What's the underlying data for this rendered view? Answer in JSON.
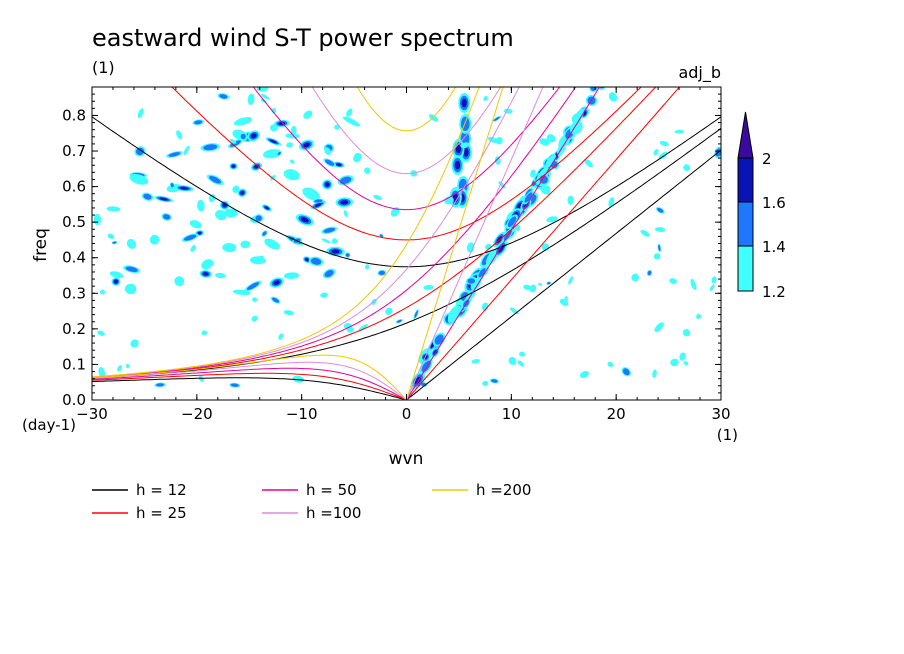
{
  "chart_data": {
    "type": "heatmap",
    "title": "eastward wind S-T power spectrum",
    "subtitle_left": "(1)",
    "subtitle_right": "adj_b",
    "xlabel": "wvn",
    "xunit": "(1)",
    "ylabel": "freq",
    "yunit": "(day-1)",
    "xlim": [
      -30,
      30
    ],
    "ylim": [
      0,
      0.88
    ],
    "x_ticks": [
      -30,
      -20,
      -10,
      0,
      10,
      20,
      30
    ],
    "x_tick_labels": [
      "−30",
      "−20",
      "−10",
      "0",
      "10",
      "20",
      "30"
    ],
    "y_ticks": [
      0,
      0.1,
      0.2,
      0.3,
      0.4,
      0.5,
      0.6,
      0.7,
      0.8
    ],
    "y_tick_labels": [
      "0.0",
      "0.1",
      "0.2",
      "0.3",
      "0.4",
      "0.5",
      "0.6",
      "0.7",
      "0.8"
    ],
    "colorbar": {
      "levels": [
        1.2,
        1.4,
        1.6,
        2
      ],
      "labels": [
        "1.2",
        "1.4",
        "1.6",
        "2"
      ],
      "colors": [
        "#40ffff",
        "#1e78ff",
        "#0a14b4",
        "#3a0aa0"
      ]
    },
    "dispersion_curves": [
      {
        "name": "h = 12",
        "h": 12,
        "color": "#000000"
      },
      {
        "name": "h = 25",
        "h": 25,
        "color": "#ff0000"
      },
      {
        "name": "h = 50",
        "h": 50,
        "color": "#e6009b"
      },
      {
        "name": "h =100",
        "h": 100,
        "color": "#dc8cdc"
      },
      {
        "name": "h =200",
        "h": 200,
        "color": "#f0c800"
      }
    ],
    "shaded_regions": [
      {
        "region": "kelvin-band",
        "x": [
          1,
          19
        ],
        "y": [
          0.02,
          0.88
        ]
      },
      {
        "region": "rossby-gravity-band",
        "x": [
          -28,
          -5
        ],
        "y": [
          0.3,
          0.8
        ]
      },
      {
        "region": "peak-column",
        "x": [
          3,
          6
        ],
        "y": [
          0.45,
          0.88
        ]
      },
      {
        "region": "scattered-noise",
        "x": [
          -30,
          30
        ],
        "y": [
          0.05,
          0.88
        ]
      }
    ]
  }
}
